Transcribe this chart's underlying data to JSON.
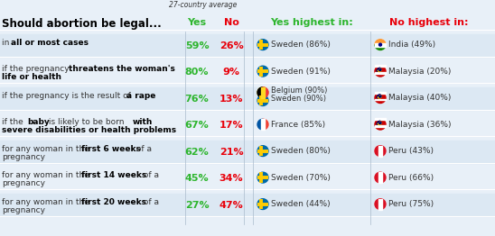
{
  "title": "Should abortion be legal...",
  "subtitle": "27-country average",
  "header_yes": "Yes",
  "header_no": "No",
  "header_yes_highest": "Yes highest in:",
  "header_no_highest": "No highest in:",
  "bg_color": "#e8f0f8",
  "row_bg_color": "#dce8f3",
  "green": "#2db52d",
  "red": "#e8000a",
  "rows": [
    {
      "label_normal": "in ",
      "label_bold": "all or most cases",
      "label_normal2": "",
      "label_line2": "",
      "yes": "59%",
      "no": "26%",
      "yes_flag": "sweden",
      "yes_country": "Sweden (86%)",
      "no_flag": "india",
      "no_country": "India (49%)"
    },
    {
      "label_normal": "if the pregnancy ",
      "label_bold": "threatens the woman's",
      "label_normal2": "",
      "label_line2": "life or health",
      "yes": "80%",
      "no": "9%",
      "yes_flag": "sweden",
      "yes_country": "Sweden (91%)",
      "no_flag": "malaysia",
      "no_country": "Malaysia (20%)"
    },
    {
      "label_normal": "if the pregnancy is the result of ",
      "label_bold": "a rape",
      "label_normal2": "",
      "label_line2": "",
      "yes": "76%",
      "no": "13%",
      "yes_flag": "belgium_sweden",
      "yes_country": "Belgium (90%)\nSweden (90%)",
      "no_flag": "malaysia",
      "no_country": "Malaysia (40%)"
    },
    {
      "label_normal": "if the ",
      "label_bold": "baby",
      "label_normal2": " is likely to be born ",
      "label_line2bold": "with",
      "label_line3": "severe disabilities or health problems",
      "yes": "67%",
      "no": "17%",
      "yes_flag": "france",
      "yes_country": "France (85%)",
      "no_flag": "malaysia",
      "no_country": "Malaysia (36%)"
    },
    {
      "label_normal": "for any woman in the ",
      "label_bold": "first 6 weeks",
      "label_normal2": " of a",
      "label_line2": "pregnancy",
      "yes": "62%",
      "no": "21%",
      "yes_flag": "sweden",
      "yes_country": "Sweden (80%)",
      "no_flag": "peru",
      "no_country": "Peru (43%)"
    },
    {
      "label_normal": "for any woman in the ",
      "label_bold": "first 14 weeks",
      "label_normal2": " of a",
      "label_line2": "pregnancy",
      "yes": "45%",
      "no": "34%",
      "yes_flag": "sweden",
      "yes_country": "Sweden (70%)",
      "no_flag": "peru",
      "no_country": "Peru (66%)"
    },
    {
      "label_normal": "for any woman in the ",
      "label_bold": "first 20 weeks",
      "label_normal2": " of a",
      "label_line2": "pregnancy",
      "yes": "27%",
      "no": "47%",
      "yes_flag": "sweden",
      "yes_country": "Sweden (44%)",
      "no_flag": "peru",
      "no_country": "Peru (75%)"
    }
  ]
}
